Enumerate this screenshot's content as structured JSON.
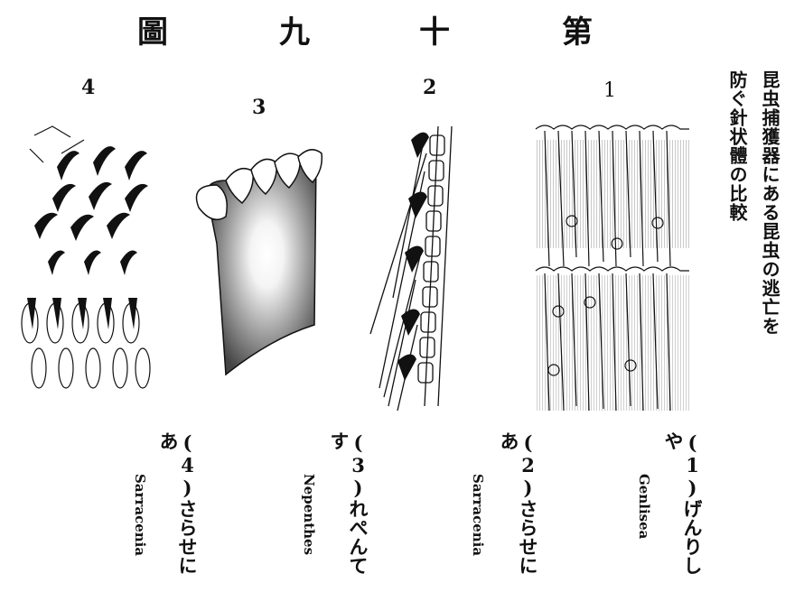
{
  "title": {
    "chars": [
      "圖",
      "九",
      "十",
      "第"
    ]
  },
  "side_title": {
    "line1": "昆虫捕獲器にある昆虫の逃亡を",
    "line2": "防ぐ針状體の比較"
  },
  "figures": [
    {
      "number": "4",
      "caption_jp": "(4)さらせにあ",
      "caption_latin": "Sarracenia",
      "icon": "hair-cluster-illustration"
    },
    {
      "number": "3",
      "caption_jp": "(3)れぺんてす",
      "caption_latin": "Nepenthes",
      "icon": "pitcher-rim-illustration"
    },
    {
      "number": "2",
      "caption_jp": "(2)さらせにあ",
      "caption_latin": "Sarracenia",
      "icon": "spine-chain-illustration"
    },
    {
      "number": "1",
      "caption_jp": "(1)げんりしや",
      "caption_latin": "Genlisea",
      "icon": "bristle-tube-illustration"
    }
  ]
}
